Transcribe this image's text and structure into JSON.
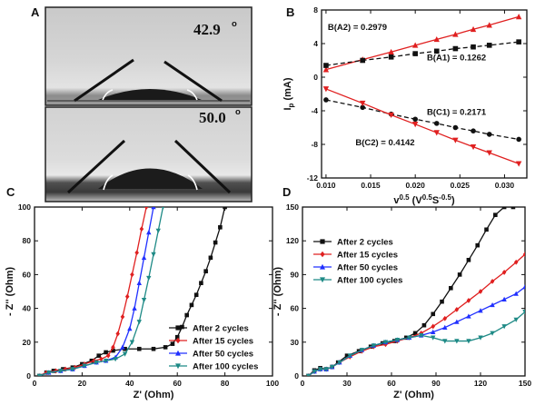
{
  "panels": {
    "A": {
      "label": "A",
      "images": [
        {
          "angle_text": "42.9",
          "degree_mark": "o"
        },
        {
          "angle_text": "50.0",
          "degree_mark": "o"
        }
      ]
    }
  },
  "chart_data": [
    {
      "panel": "B",
      "type": "scatter",
      "xlabel": "v",
      "xlabel_sup": "0.5",
      "xlabel_units": "(V",
      "xlabel_units_sup1": "0.5",
      "xlabel_units_mid": "S",
      "xlabel_units_sup2": "-0.5",
      "xlabel_units_end": ")",
      "ylabel": "I",
      "ylabel_sub": "p",
      "ylabel_units": "(mA)",
      "xlim": [
        0.0095,
        0.0325
      ],
      "ylim": [
        -12,
        8
      ],
      "xticks": [
        0.01,
        0.015,
        0.02,
        0.025,
        0.03
      ],
      "xtick_labels": [
        "0.010",
        "0.015",
        "0.020",
        "0.025",
        "0.030"
      ],
      "yticks": [
        -12,
        -8,
        -4,
        0,
        4,
        8
      ],
      "ytick_labels": [
        "-12",
        "-8",
        "-4",
        "0",
        "4",
        "8"
      ],
      "series": [
        {
          "name": "A2",
          "color": "#e02020",
          "marker": "triangle-up",
          "line": "solid",
          "x": [
            0.01,
            0.0141,
            0.0173,
            0.02,
            0.0224,
            0.0245,
            0.0265,
            0.0283,
            0.0316
          ],
          "y": [
            0.9,
            2.1,
            3.0,
            3.8,
            4.5,
            5.1,
            5.7,
            6.2,
            7.2
          ]
        },
        {
          "name": "A1",
          "color": "#111111",
          "marker": "square",
          "line": "dashed",
          "x": [
            0.01,
            0.0141,
            0.0173,
            0.02,
            0.0224,
            0.0245,
            0.0265,
            0.0283,
            0.0316
          ],
          "y": [
            1.4,
            2.0,
            2.4,
            2.8,
            3.1,
            3.4,
            3.6,
            3.8,
            4.2
          ]
        },
        {
          "name": "C1",
          "color": "#111111",
          "marker": "circle",
          "line": "dashed",
          "x": [
            0.01,
            0.0141,
            0.0173,
            0.02,
            0.0224,
            0.0245,
            0.0265,
            0.0283,
            0.0316
          ],
          "y": [
            -2.7,
            -3.6,
            -4.4,
            -5.0,
            -5.5,
            -6.0,
            -6.4,
            -6.8,
            -7.4
          ]
        },
        {
          "name": "C2",
          "color": "#e02020",
          "marker": "triangle-down",
          "line": "solid",
          "x": [
            0.01,
            0.0141,
            0.0173,
            0.02,
            0.0224,
            0.0245,
            0.0265,
            0.0283,
            0.0316
          ],
          "y": [
            -1.4,
            -3.1,
            -4.5,
            -5.6,
            -6.6,
            -7.5,
            -8.3,
            -9.0,
            -10.3
          ]
        }
      ],
      "annotations": [
        {
          "text": "B(A2) = 0.2979",
          "x": 0.0102,
          "y": 5.6
        },
        {
          "text": "B(A1) = 0.1262",
          "x": 0.0213,
          "y": 2.0
        },
        {
          "text": "B(C1) = 0.2171",
          "x": 0.0213,
          "y": -4.5
        },
        {
          "text": "B(C2) = 0.4142",
          "x": 0.0133,
          "y": -8.1
        }
      ]
    },
    {
      "panel": "C",
      "type": "line",
      "xlabel": "Z' (Ohm)",
      "ylabel": "- Z'' (Ohm)",
      "xlim": [
        0,
        100
      ],
      "ylim": [
        0,
        100
      ],
      "xticks": [
        0,
        20,
        40,
        60,
        80,
        100
      ],
      "yticks": [
        0,
        20,
        40,
        60,
        80,
        100
      ],
      "legend": "center-right",
      "series": [
        {
          "name": "After 2 cycles",
          "color": "#111111",
          "marker": "square",
          "x": [
            2,
            5,
            8,
            12,
            16,
            20,
            24,
            27,
            30,
            33,
            38,
            44,
            50,
            55,
            58,
            60,
            62,
            64,
            66,
            68,
            70,
            72,
            74,
            76,
            78,
            80
          ],
          "y": [
            0,
            2,
            3,
            4,
            5,
            7,
            9,
            12,
            14,
            15,
            16,
            16,
            16,
            17,
            19,
            23,
            29,
            36,
            42,
            48,
            55,
            62,
            70,
            79,
            88,
            100
          ]
        },
        {
          "name": "After 15 cycles",
          "color": "#e02020",
          "marker": "diamond",
          "x": [
            2,
            5,
            9,
            13,
            17,
            21,
            25,
            28,
            31,
            33,
            35,
            37,
            39,
            41,
            43,
            45,
            47
          ],
          "y": [
            0,
            2,
            3,
            4,
            5,
            7,
            9,
            10,
            12,
            17,
            25,
            35,
            47,
            60,
            73,
            87,
            100
          ]
        },
        {
          "name": "After 50 cycles",
          "color": "#2030ff",
          "marker": "triangle-up",
          "x": [
            2,
            6,
            11,
            16,
            21,
            26,
            30,
            34,
            37,
            40,
            42,
            44,
            46,
            48,
            50
          ],
          "y": [
            0,
            2,
            3,
            4,
            6,
            8,
            9,
            11,
            17,
            28,
            40,
            55,
            70,
            85,
            100
          ]
        },
        {
          "name": "After 100 cycles",
          "color": "#1e8a86",
          "marker": "triangle-down",
          "x": [
            2,
            6,
            11,
            16,
            21,
            26,
            30,
            34,
            38,
            41,
            44,
            46,
            48,
            50,
            52,
            54
          ],
          "y": [
            0,
            2,
            3,
            4,
            6,
            8,
            9,
            10,
            13,
            20,
            32,
            45,
            58,
            72,
            86,
            100
          ]
        }
      ]
    },
    {
      "panel": "D",
      "type": "line",
      "xlabel": "Z' (Ohm)",
      "ylabel": "- Z'' (Ohm)",
      "xlim": [
        0,
        150
      ],
      "ylim": [
        0,
        150
      ],
      "xticks": [
        0,
        30,
        60,
        90,
        120,
        150
      ],
      "yticks": [
        0,
        30,
        60,
        90,
        120,
        150
      ],
      "legend": "upper-left",
      "series": [
        {
          "name": "After 2 cycles",
          "color": "#111111",
          "marker": "square",
          "x": [
            4,
            8,
            12,
            16,
            20,
            24,
            30,
            38,
            46,
            54,
            62,
            70,
            76,
            82,
            88,
            94,
            100,
            106,
            112,
            118,
            124,
            130,
            136,
            142
          ],
          "y": [
            0,
            5,
            7,
            6,
            8,
            12,
            18,
            22,
            26,
            29,
            31,
            34,
            38,
            45,
            55,
            66,
            78,
            90,
            103,
            116,
            130,
            143,
            150,
            150
          ]
        },
        {
          "name": "After 15 cycles",
          "color": "#e02020",
          "marker": "diamond",
          "x": [
            4,
            8,
            12,
            16,
            20,
            25,
            32,
            40,
            48,
            56,
            64,
            72,
            80,
            88,
            96,
            104,
            112,
            120,
            128,
            136,
            144,
            150
          ],
          "y": [
            0,
            4,
            6,
            6,
            8,
            12,
            17,
            22,
            26,
            28,
            31,
            34,
            38,
            44,
            51,
            59,
            67,
            75,
            84,
            92,
            101,
            108
          ]
        },
        {
          "name": "After 50 cycles",
          "color": "#2030ff",
          "marker": "triangle-up",
          "x": [
            4,
            8,
            12,
            16,
            20,
            25,
            32,
            40,
            48,
            56,
            64,
            72,
            80,
            88,
            96,
            104,
            112,
            120,
            128,
            136,
            144,
            150
          ],
          "y": [
            0,
            4,
            6,
            6,
            8,
            12,
            18,
            23,
            27,
            30,
            32,
            34,
            36,
            39,
            43,
            48,
            53,
            58,
            63,
            68,
            73,
            79
          ]
        },
        {
          "name": "After 100 cycles",
          "color": "#1e8a86",
          "marker": "triangle-down",
          "x": [
            4,
            8,
            12,
            16,
            20,
            25,
            32,
            40,
            48,
            56,
            64,
            72,
            80,
            88,
            96,
            104,
            112,
            120,
            128,
            136,
            144,
            150
          ],
          "y": [
            0,
            4,
            6,
            6,
            8,
            12,
            18,
            23,
            27,
            30,
            32,
            34,
            36,
            34,
            31,
            31,
            31,
            34,
            38,
            44,
            50,
            57
          ]
        }
      ]
    }
  ]
}
